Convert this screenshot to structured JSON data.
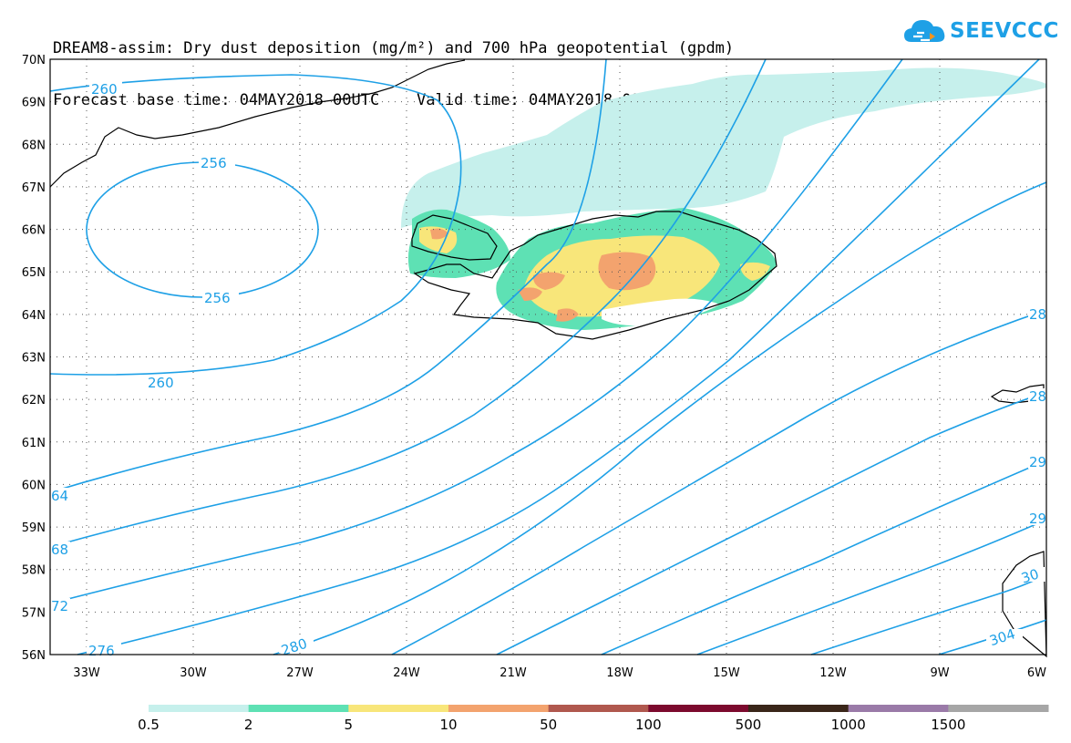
{
  "title": {
    "line1": "DREAM8-assim: Dry dust deposition (mg/m²) and 700 hPa geopotential (gpdm)",
    "line2": "Forecast base time: 04MAY2018 00UTC    Valid time: 04MAY2018 09UTC"
  },
  "logo": {
    "text": "SEEVCCC",
    "icon": "cloud-icon",
    "color": "#1ea0e6"
  },
  "lat_labels": [
    "70N",
    "69N",
    "68N",
    "67N",
    "66N",
    "65N",
    "64N",
    "63N",
    "62N",
    "61N",
    "60N",
    "59N",
    "58N",
    "57N",
    "56N"
  ],
  "lon_labels": [
    "33W",
    "30W",
    "27W",
    "24W",
    "21W",
    "18W",
    "15W",
    "12W",
    "9W",
    "6W"
  ],
  "contour_labels": [
    "260",
    "256",
    "256",
    "260",
    "64",
    "68",
    "72",
    "276",
    "280",
    "304",
    "28",
    "28",
    "29",
    "29",
    "30"
  ],
  "legend": {
    "labels": [
      "0.5",
      "2",
      "5",
      "10",
      "50",
      "100",
      "500",
      "1000",
      "1500"
    ],
    "colors": [
      "#c6f0ec",
      "#5ee1b4",
      "#f8e67a",
      "#f3a36e",
      "#b0584e",
      "#7c0a2e",
      "#3a2619",
      "#9a7aa8",
      "#a6a6a6"
    ]
  },
  "colors": {
    "contour": "#1ea0e6",
    "land": "#000000"
  }
}
